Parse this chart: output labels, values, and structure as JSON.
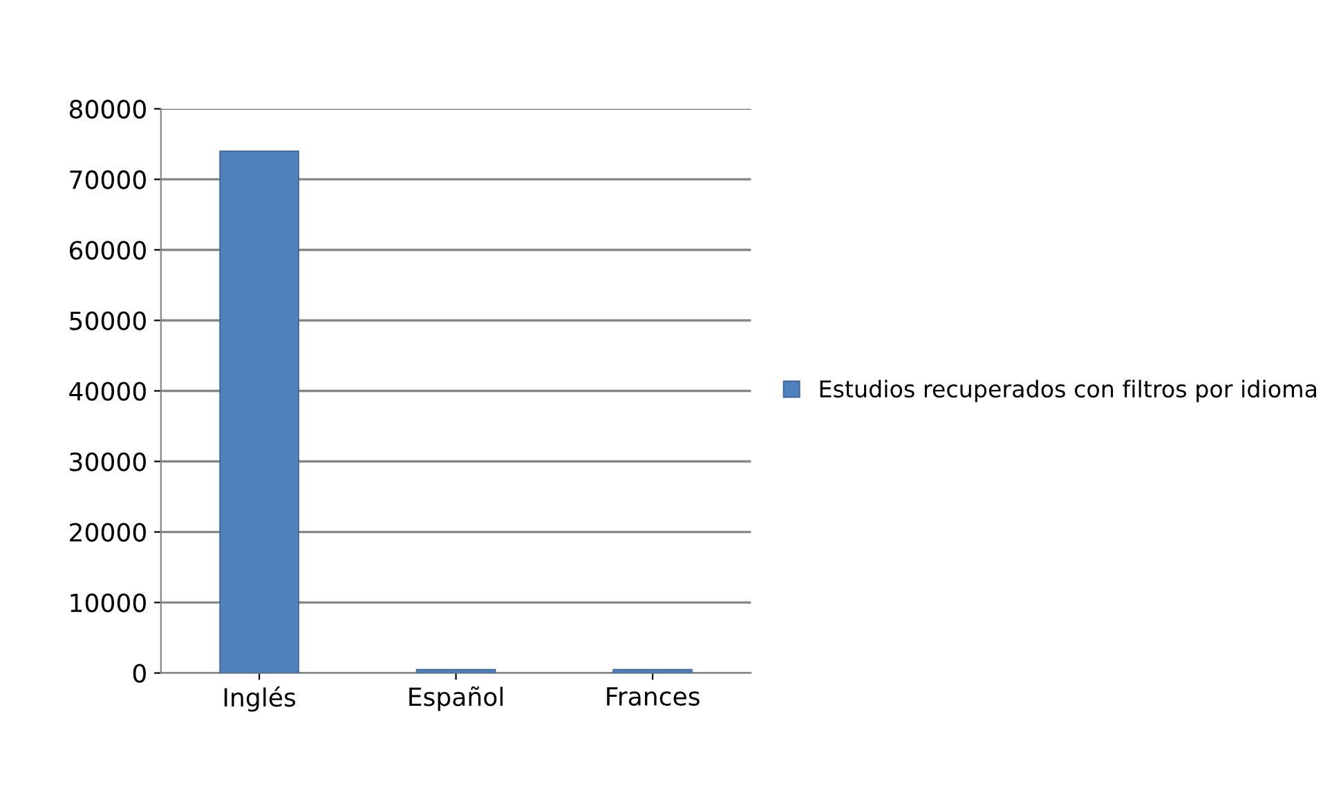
{
  "chart_data": {
    "type": "bar",
    "categories": [
      "Inglés",
      "Español",
      "Frances"
    ],
    "series": [
      {
        "name": "Estudios recuperados con filtros por idioma",
        "color": "#4f81bd",
        "values": [
          74000,
          500,
          500
        ]
      }
    ],
    "ylim": [
      0,
      80000
    ],
    "yticks": [
      0,
      10000,
      20000,
      30000,
      40000,
      50000,
      60000,
      70000,
      80000
    ],
    "grid": "y",
    "legend": "right"
  }
}
